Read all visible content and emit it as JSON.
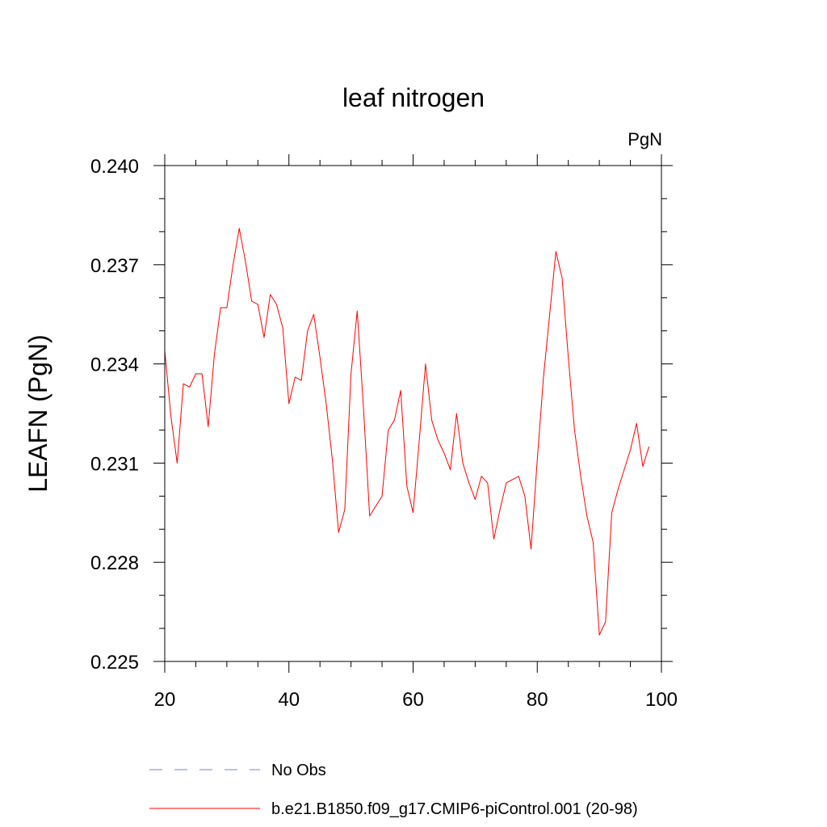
{
  "chart_data": {
    "type": "line",
    "title": "leaf nitrogen",
    "units_label": "PgN",
    "ylabel": "LEAFN  (PgN)",
    "xlabel": "",
    "xlim": [
      20,
      100
    ],
    "ylim": [
      0.225,
      0.24
    ],
    "x_ticks": [
      20,
      40,
      60,
      80,
      100
    ],
    "x_tick_labels": [
      "20",
      "40",
      "60",
      "80",
      "100"
    ],
    "x_minor_step": 5,
    "y_ticks": [
      0.225,
      0.228,
      0.231,
      0.234,
      0.237,
      0.24
    ],
    "y_tick_labels": [
      "0.225",
      "0.228",
      "0.231",
      "0.234",
      "0.237",
      "0.240"
    ],
    "y_minor_step": 0.001,
    "grid": false,
    "legend": [
      {
        "label": "No Obs",
        "color": "#7f7fd0",
        "dash": true
      },
      {
        "label": "b.e21.B1850.f09_g17.CMIP6-piControl.001 (20-98)",
        "color": "#ff0000",
        "dash": false
      }
    ],
    "series": [
      {
        "name": "b.e21.B1850.f09_g17.CMIP6-piControl.001 (20-98)",
        "color": "#ff0000",
        "x": [
          20,
          21,
          22,
          23,
          24,
          25,
          26,
          27,
          28,
          29,
          30,
          31,
          32,
          33,
          34,
          35,
          36,
          37,
          38,
          39,
          40,
          41,
          42,
          43,
          44,
          45,
          46,
          47,
          48,
          49,
          50,
          51,
          52,
          53,
          54,
          55,
          56,
          57,
          58,
          59,
          60,
          61,
          62,
          63,
          64,
          65,
          66,
          67,
          68,
          69,
          70,
          71,
          72,
          73,
          74,
          75,
          76,
          77,
          78,
          79,
          80,
          81,
          82,
          83,
          84,
          85,
          86,
          87,
          88,
          89,
          90,
          91,
          92,
          93,
          94,
          95,
          96,
          97,
          98
        ],
        "values": [
          0.2344,
          0.2324,
          0.231,
          0.2334,
          0.2333,
          0.2337,
          0.2337,
          0.2321,
          0.2343,
          0.2357,
          0.2357,
          0.237,
          0.2381,
          0.2371,
          0.2359,
          0.2358,
          0.2348,
          0.2361,
          0.2358,
          0.2351,
          0.2328,
          0.2336,
          0.2335,
          0.235,
          0.2355,
          0.2342,
          0.2328,
          0.2311,
          0.2289,
          0.2296,
          0.2337,
          0.2356,
          0.2327,
          0.2294,
          0.2297,
          0.23,
          0.232,
          0.2323,
          0.2332,
          0.2303,
          0.2295,
          0.2317,
          0.234,
          0.2323,
          0.2317,
          0.2313,
          0.2308,
          0.2325,
          0.231,
          0.2304,
          0.2299,
          0.2306,
          0.2304,
          0.2287,
          0.2296,
          0.2304,
          0.2305,
          0.2306,
          0.23,
          0.2284,
          0.2311,
          0.2336,
          0.2355,
          0.2374,
          0.2366,
          0.2342,
          0.232,
          0.2306,
          0.2294,
          0.2286,
          0.2258,
          0.2262,
          0.2295,
          0.2302,
          0.2308,
          0.2314,
          0.2322,
          0.2309,
          0.2315
        ]
      }
    ]
  }
}
